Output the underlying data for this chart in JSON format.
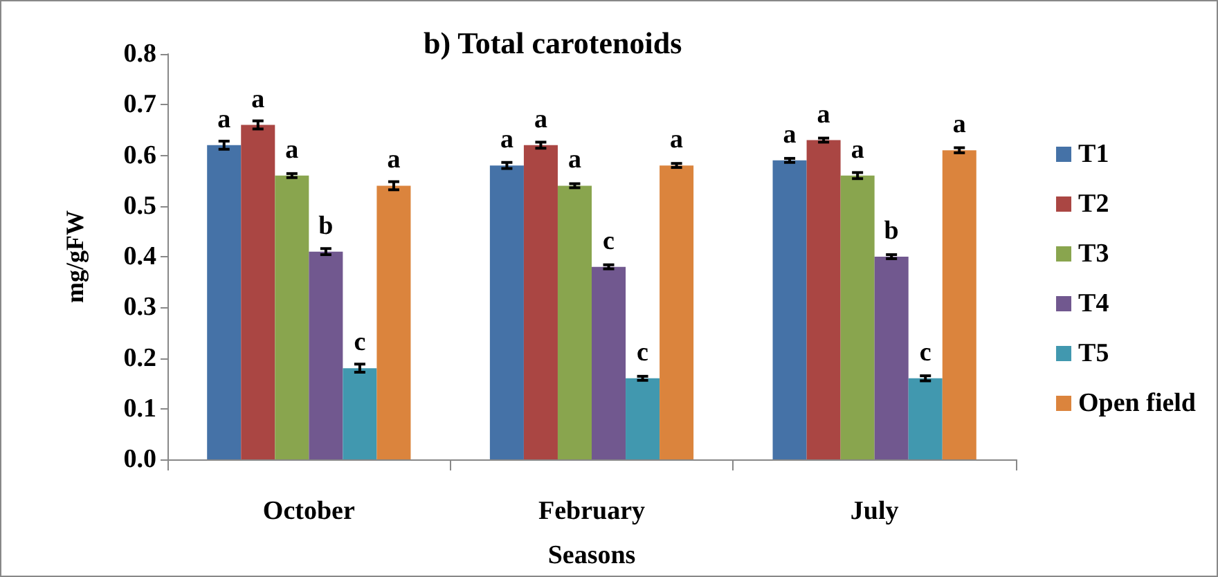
{
  "chart_data": {
    "type": "bar",
    "title": "b) Total carotenoids",
    "xlabel": "Seasons",
    "ylabel": "mg/gFW",
    "categories": [
      "October",
      "February",
      "July"
    ],
    "series": [
      {
        "name": "T1",
        "color": "#4572a7",
        "values": [
          0.62,
          0.58,
          0.59
        ],
        "errors": [
          0.008,
          0.006,
          0.004
        ],
        "value_labels": [
          "a",
          "a",
          "a"
        ]
      },
      {
        "name": "T2",
        "color": "#aa4643",
        "values": [
          0.66,
          0.62,
          0.63
        ],
        "errors": [
          0.008,
          0.006,
          0.004
        ],
        "value_labels": [
          "a",
          "a",
          "a"
        ]
      },
      {
        "name": "T3",
        "color": "#89a54e",
        "values": [
          0.56,
          0.54,
          0.56
        ],
        "errors": [
          0.004,
          0.004,
          0.006
        ],
        "value_labels": [
          "a",
          "a",
          "a"
        ]
      },
      {
        "name": "T4",
        "color": "#71588f",
        "values": [
          0.41,
          0.38,
          0.4
        ],
        "errors": [
          0.006,
          0.004,
          0.004
        ],
        "value_labels": [
          "b",
          "c",
          "b"
        ]
      },
      {
        "name": "T5",
        "color": "#4198af",
        "values": [
          0.18,
          0.16,
          0.16
        ],
        "errors": [
          0.008,
          0.004,
          0.005
        ],
        "value_labels": [
          "c",
          "c",
          "c"
        ]
      },
      {
        "name": "Open field",
        "color": "#db843d",
        "values": [
          0.54,
          0.58,
          0.61
        ],
        "errors": [
          0.008,
          0.004,
          0.005
        ],
        "value_labels": [
          "a",
          "a",
          "a"
        ]
      }
    ],
    "ylim": [
      0,
      0.8
    ],
    "yticks": [
      {
        "value": 0,
        "label": "0.0"
      },
      0.1,
      0.2,
      0.3,
      0.4,
      0.5,
      0.6,
      0.7,
      0.8
    ],
    "grid": false,
    "legend": "right"
  }
}
